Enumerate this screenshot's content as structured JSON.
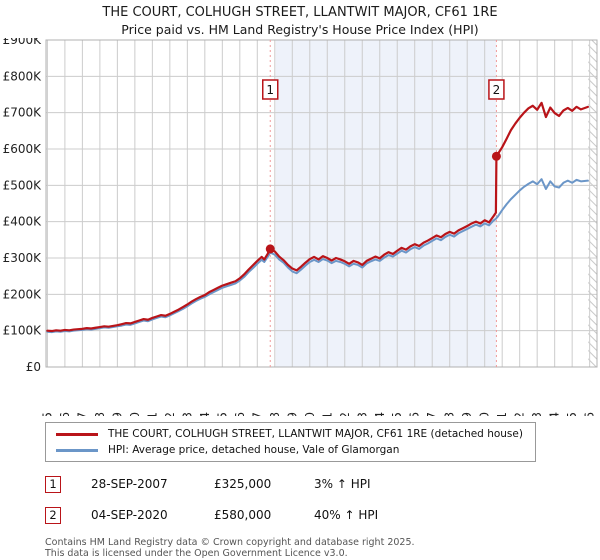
{
  "title": "THE COURT, COLHUGH STREET, LLANTWIT MAJOR, CF61 1RE",
  "subtitle": "Price paid vs. HM Land Registry's House Price Index (HPI)",
  "legend": [
    {
      "label": "THE COURT, COLHUGH STREET, LLANTWIT MAJOR, CF61 1RE (detached house)",
      "color": "#b91419"
    },
    {
      "label": "HPI: Average price, detached house, Vale of Glamorgan",
      "color": "#6b96c8"
    }
  ],
  "annotations": [
    {
      "num": "1",
      "date": "28-SEP-2007",
      "price": "£325,000",
      "hpi": "3% ↑ HPI"
    },
    {
      "num": "2",
      "date": "04-SEP-2020",
      "price": "£580,000",
      "hpi": "40% ↑ HPI"
    }
  ],
  "footer_line1": "Contains HM Land Registry data © Crown copyright and database right 2025.",
  "footer_line2": "This data is licensed under the Open Government Licence v3.0.",
  "chart_data": {
    "type": "line",
    "title": "THE COURT, COLHUGH STREET, LLANTWIT MAJOR, CF61 1RE — Price paid vs. HPI",
    "y_unit": "GBP thousands",
    "x_min": 1994.92,
    "x_max": 2026.42,
    "y_min": 0,
    "y_max": 900,
    "x_ticks": [
      1995,
      1996,
      1997,
      1998,
      1999,
      2000,
      2001,
      2002,
      2003,
      2004,
      2005,
      2006,
      2007,
      2008,
      2009,
      2010,
      2011,
      2012,
      2013,
      2014,
      2015,
      2016,
      2017,
      2018,
      2019,
      2020,
      2021,
      2022,
      2023,
      2024,
      2025,
      2026
    ],
    "y_ticks": [
      0,
      100,
      200,
      300,
      400,
      500,
      600,
      700,
      800,
      900
    ],
    "y_tick_labels": [
      "£0",
      "£100K",
      "£200K",
      "£300K",
      "£400K",
      "£500K",
      "£600K",
      "£700K",
      "£800K",
      "£900K"
    ],
    "grid": true,
    "legend_position": "bottom",
    "shaded_span": [
      2008.05,
      2020.67
    ],
    "hatch_span": [
      2025.92,
      2026.42
    ],
    "colors": {
      "band": "#eef2fa",
      "grid": "#cccccc",
      "border": "#b0b0b0",
      "dashed": "#f09a9a",
      "hatch_line": "#c8c8c8",
      "marker_box_border": "#b91419",
      "tick_text": "#222222"
    },
    "sales": [
      {
        "label": "1",
        "x": 2007.74,
        "y": 325,
        "date": "28-SEP-2007",
        "price_gbp": 325000,
        "vs_hpi": "3% ↑ HPI"
      },
      {
        "label": "2",
        "x": 2020.67,
        "y": 580,
        "date": "04-SEP-2020",
        "price_gbp": 580000,
        "vs_hpi": "40% ↑ HPI"
      }
    ],
    "series": [
      {
        "name": "THE COURT, COLHUGH STREET, LLANTWIT MAJOR, CF61 1RE (detached house)",
        "color": "#b91419",
        "width": 2.2,
        "points": [
          [
            1995.0,
            100
          ],
          [
            1995.25,
            99
          ],
          [
            1995.5,
            101
          ],
          [
            1995.75,
            100
          ],
          [
            1996.0,
            102
          ],
          [
            1996.25,
            101
          ],
          [
            1996.5,
            103
          ],
          [
            1996.75,
            104
          ],
          [
            1997.0,
            105
          ],
          [
            1997.25,
            107
          ],
          [
            1997.5,
            106
          ],
          [
            1997.75,
            108
          ],
          [
            1998.0,
            110
          ],
          [
            1998.25,
            112
          ],
          [
            1998.5,
            111
          ],
          [
            1998.75,
            113
          ],
          [
            1999.0,
            115
          ],
          [
            1999.25,
            118
          ],
          [
            1999.5,
            121
          ],
          [
            1999.75,
            120
          ],
          [
            2000.0,
            124
          ],
          [
            2000.25,
            128
          ],
          [
            2000.5,
            132
          ],
          [
            2000.75,
            130
          ],
          [
            2001.0,
            135
          ],
          [
            2001.25,
            139
          ],
          [
            2001.5,
            143
          ],
          [
            2001.75,
            141
          ],
          [
            2002.0,
            146
          ],
          [
            2002.25,
            152
          ],
          [
            2002.5,
            158
          ],
          [
            2002.75,
            165
          ],
          [
            2003.0,
            172
          ],
          [
            2003.25,
            180
          ],
          [
            2003.5,
            187
          ],
          [
            2003.75,
            193
          ],
          [
            2004.0,
            198
          ],
          [
            2004.25,
            206
          ],
          [
            2004.5,
            212
          ],
          [
            2004.75,
            218
          ],
          [
            2005.0,
            224
          ],
          [
            2005.25,
            228
          ],
          [
            2005.5,
            232
          ],
          [
            2005.75,
            236
          ],
          [
            2006.0,
            244
          ],
          [
            2006.25,
            255
          ],
          [
            2006.5,
            268
          ],
          [
            2006.75,
            280
          ],
          [
            2007.0,
            292
          ],
          [
            2007.25,
            303
          ],
          [
            2007.4,
            296
          ],
          [
            2007.6,
            312
          ],
          [
            2007.74,
            325
          ],
          [
            2008.0,
            318
          ],
          [
            2008.25,
            304
          ],
          [
            2008.5,
            294
          ],
          [
            2008.75,
            281
          ],
          [
            2009.0,
            271
          ],
          [
            2009.25,
            266
          ],
          [
            2009.5,
            276
          ],
          [
            2009.75,
            287
          ],
          [
            2010.0,
            297
          ],
          [
            2010.25,
            303
          ],
          [
            2010.5,
            296
          ],
          [
            2010.75,
            305
          ],
          [
            2011.0,
            300
          ],
          [
            2011.25,
            293
          ],
          [
            2011.5,
            300
          ],
          [
            2011.75,
            296
          ],
          [
            2012.0,
            291
          ],
          [
            2012.25,
            284
          ],
          [
            2012.5,
            292
          ],
          [
            2012.75,
            288
          ],
          [
            2013.0,
            281
          ],
          [
            2013.25,
            292
          ],
          [
            2013.5,
            298
          ],
          [
            2013.75,
            304
          ],
          [
            2014.0,
            299
          ],
          [
            2014.25,
            309
          ],
          [
            2014.5,
            316
          ],
          [
            2014.75,
            311
          ],
          [
            2015.0,
            320
          ],
          [
            2015.25,
            328
          ],
          [
            2015.5,
            323
          ],
          [
            2015.75,
            332
          ],
          [
            2016.0,
            338
          ],
          [
            2016.25,
            333
          ],
          [
            2016.5,
            342
          ],
          [
            2016.75,
            348
          ],
          [
            2017.0,
            355
          ],
          [
            2017.25,
            362
          ],
          [
            2017.5,
            357
          ],
          [
            2017.75,
            366
          ],
          [
            2018.0,
            372
          ],
          [
            2018.25,
            367
          ],
          [
            2018.5,
            376
          ],
          [
            2018.75,
            382
          ],
          [
            2019.0,
            388
          ],
          [
            2019.25,
            395
          ],
          [
            2019.5,
            400
          ],
          [
            2019.75,
            395
          ],
          [
            2020.0,
            404
          ],
          [
            2020.25,
            398
          ],
          [
            2020.5,
            415
          ],
          [
            2020.64,
            425
          ],
          [
            2020.67,
            580
          ],
          [
            2021.0,
            605
          ],
          [
            2021.25,
            628
          ],
          [
            2021.5,
            652
          ],
          [
            2021.75,
            670
          ],
          [
            2022.0,
            686
          ],
          [
            2022.25,
            700
          ],
          [
            2022.5,
            712
          ],
          [
            2022.75,
            719
          ],
          [
            2023.0,
            708
          ],
          [
            2023.25,
            727
          ],
          [
            2023.5,
            688
          ],
          [
            2023.75,
            714
          ],
          [
            2024.0,
            699
          ],
          [
            2024.25,
            691
          ],
          [
            2024.5,
            706
          ],
          [
            2024.75,
            713
          ],
          [
            2025.0,
            705
          ],
          [
            2025.25,
            716
          ],
          [
            2025.5,
            709
          ],
          [
            2025.9,
            716
          ]
        ]
      },
      {
        "name": "HPI: Average price, detached house, Vale of Glamorgan",
        "color": "#6b96c8",
        "width": 2,
        "points": [
          [
            1995.0,
            97
          ],
          [
            1995.25,
            96
          ],
          [
            1995.5,
            98
          ],
          [
            1995.75,
            97
          ],
          [
            1996.0,
            99
          ],
          [
            1996.25,
            98
          ],
          [
            1996.5,
            100
          ],
          [
            1996.75,
            101
          ],
          [
            1997.0,
            102
          ],
          [
            1997.25,
            104
          ],
          [
            1997.5,
            103
          ],
          [
            1997.75,
            105
          ],
          [
            1998.0,
            107
          ],
          [
            1998.25,
            109
          ],
          [
            1998.5,
            108
          ],
          [
            1998.75,
            110
          ],
          [
            1999.0,
            112
          ],
          [
            1999.25,
            114
          ],
          [
            1999.5,
            117
          ],
          [
            1999.75,
            116
          ],
          [
            2000.0,
            120
          ],
          [
            2000.25,
            124
          ],
          [
            2000.5,
            128
          ],
          [
            2000.75,
            126
          ],
          [
            2001.0,
            131
          ],
          [
            2001.25,
            135
          ],
          [
            2001.5,
            139
          ],
          [
            2001.75,
            137
          ],
          [
            2002.0,
            142
          ],
          [
            2002.25,
            148
          ],
          [
            2002.5,
            154
          ],
          [
            2002.75,
            160
          ],
          [
            2003.0,
            167
          ],
          [
            2003.25,
            175
          ],
          [
            2003.5,
            182
          ],
          [
            2003.75,
            188
          ],
          [
            2004.0,
            193
          ],
          [
            2004.25,
            200
          ],
          [
            2004.5,
            206
          ],
          [
            2004.75,
            212
          ],
          [
            2005.0,
            218
          ],
          [
            2005.25,
            222
          ],
          [
            2005.5,
            226
          ],
          [
            2005.75,
            230
          ],
          [
            2006.0,
            238
          ],
          [
            2006.25,
            248
          ],
          [
            2006.5,
            261
          ],
          [
            2006.75,
            272
          ],
          [
            2007.0,
            284
          ],
          [
            2007.25,
            295
          ],
          [
            2007.4,
            289
          ],
          [
            2007.6,
            304
          ],
          [
            2007.74,
            315
          ],
          [
            2008.0,
            309
          ],
          [
            2008.25,
            296
          ],
          [
            2008.5,
            287
          ],
          [
            2008.75,
            274
          ],
          [
            2009.0,
            263
          ],
          [
            2009.25,
            258
          ],
          [
            2009.5,
            268
          ],
          [
            2009.75,
            279
          ],
          [
            2010.0,
            289
          ],
          [
            2010.25,
            295
          ],
          [
            2010.5,
            289
          ],
          [
            2010.75,
            297
          ],
          [
            2011.0,
            293
          ],
          [
            2011.25,
            286
          ],
          [
            2011.5,
            292
          ],
          [
            2011.75,
            289
          ],
          [
            2012.0,
            284
          ],
          [
            2012.25,
            277
          ],
          [
            2012.5,
            284
          ],
          [
            2012.75,
            281
          ],
          [
            2013.0,
            274
          ],
          [
            2013.25,
            285
          ],
          [
            2013.5,
            291
          ],
          [
            2013.75,
            296
          ],
          [
            2014.0,
            292
          ],
          [
            2014.25,
            301
          ],
          [
            2014.5,
            308
          ],
          [
            2014.75,
            304
          ],
          [
            2015.0,
            312
          ],
          [
            2015.25,
            320
          ],
          [
            2015.5,
            315
          ],
          [
            2015.75,
            324
          ],
          [
            2016.0,
            330
          ],
          [
            2016.25,
            325
          ],
          [
            2016.5,
            334
          ],
          [
            2016.75,
            340
          ],
          [
            2017.0,
            347
          ],
          [
            2017.25,
            354
          ],
          [
            2017.5,
            349
          ],
          [
            2017.75,
            358
          ],
          [
            2018.0,
            364
          ],
          [
            2018.25,
            359
          ],
          [
            2018.5,
            368
          ],
          [
            2018.75,
            374
          ],
          [
            2019.0,
            380
          ],
          [
            2019.25,
            386
          ],
          [
            2019.5,
            392
          ],
          [
            2019.75,
            387
          ],
          [
            2020.0,
            395
          ],
          [
            2020.25,
            390
          ],
          [
            2020.5,
            403
          ],
          [
            2020.64,
            408
          ],
          [
            2020.75,
            414
          ],
          [
            2021.0,
            432
          ],
          [
            2021.25,
            448
          ],
          [
            2021.5,
            462
          ],
          [
            2021.75,
            474
          ],
          [
            2022.0,
            486
          ],
          [
            2022.25,
            496
          ],
          [
            2022.5,
            504
          ],
          [
            2022.75,
            511
          ],
          [
            2023.0,
            503
          ],
          [
            2023.25,
            517
          ],
          [
            2023.5,
            490
          ],
          [
            2023.75,
            511
          ],
          [
            2024.0,
            497
          ],
          [
            2024.25,
            494
          ],
          [
            2024.5,
            507
          ],
          [
            2024.75,
            513
          ],
          [
            2025.0,
            507
          ],
          [
            2025.25,
            515
          ],
          [
            2025.5,
            511
          ],
          [
            2025.9,
            513
          ]
        ]
      }
    ]
  }
}
